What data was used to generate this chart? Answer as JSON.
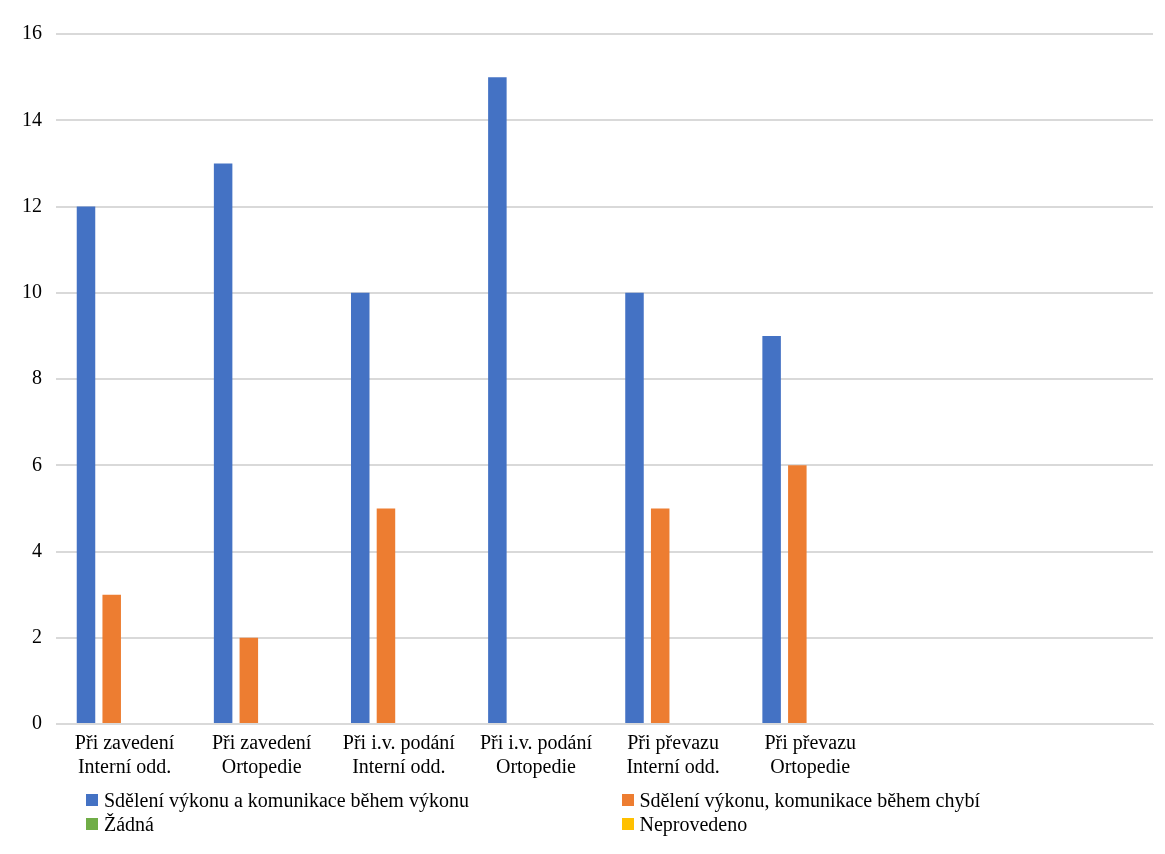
{
  "chart_data": {
    "type": "bar",
    "categories": [
      "Při zavedení Interní odd.",
      "Při zavedení Ortopedie",
      "Při i.v. podání Interní odd.",
      "Při i.v. podání Ortopedie",
      "Při převazu Interní odd.",
      "Při převazu Ortopedie",
      null,
      null
    ],
    "series": [
      {
        "name": "Sdělení výkonu a komunikace během výkonu",
        "color": "#4472c4",
        "values": [
          12,
          13,
          10,
          15,
          10,
          9,
          null,
          null
        ]
      },
      {
        "name": "Sdělení výkonu, komunikace během chybí",
        "color": "#ed7d31",
        "values": [
          3,
          2,
          5,
          0,
          5,
          6,
          null,
          null
        ]
      },
      {
        "name": "Žádná",
        "color": "#70ad47",
        "values": [
          0,
          0,
          0,
          0,
          0,
          0,
          null,
          null
        ]
      },
      {
        "name": "Neprovedeno",
        "color": "#ffc000",
        "values": [
          0,
          0,
          0,
          0,
          0,
          0,
          null,
          null
        ]
      }
    ],
    "ylim": [
      0,
      16
    ],
    "yticks": [
      0,
      2,
      4,
      6,
      8,
      10,
      12,
      14,
      16
    ],
    "grid": "y",
    "legend": "bottom"
  }
}
